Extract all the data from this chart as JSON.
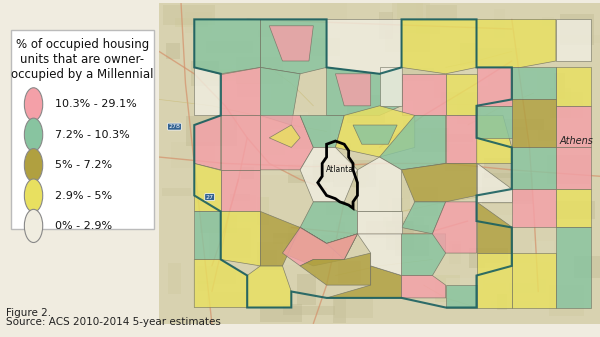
{
  "figure_label": "Figure 2.",
  "source_label": "Source: ACS 2010-2014 5-year estimates",
  "legend_title": "% of occupied housing\nunits that are owner-\noccupied by a Millennial",
  "legend_items": [
    {
      "label": "10.3% - 29.1%",
      "color": "#f4a0a8"
    },
    {
      "label": "7.2% - 10.3%",
      "color": "#88c4a0"
    },
    {
      "label": "5% - 7.2%",
      "color": "#b0a040"
    },
    {
      "label": "2.9% - 5%",
      "color": "#e8e060"
    },
    {
      "label": "0% - 2.9%",
      "color": "#f0ede0"
    }
  ],
  "fig_bg": "#f0ece0",
  "legend_bg": "#ffffff",
  "legend_edge": "#bbbbbb",
  "map_bg": "#d8d0b0",
  "map_outer_bg": "#cfc8a8",
  "road_color": "#d4906a",
  "road_color2": "#e8c870",
  "legend_title_fontsize": 8.5,
  "legend_item_fontsize": 8,
  "footer_fontsize": 7.5,
  "athens_fontsize": 7
}
